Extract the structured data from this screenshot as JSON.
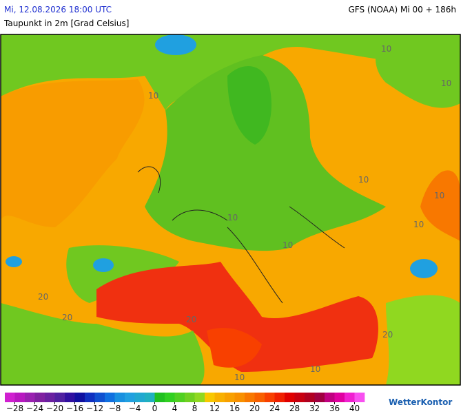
{
  "header": {
    "date": "Mi, 12.08.2026 18:00 UTC",
    "parameter": "Taupunkt in 2m [Grad Celsius]",
    "model": "GFS (NOAA) Mi 00 + 186h"
  },
  "map_labels": [
    "10",
    "10",
    "10",
    "10",
    "10",
    "10",
    "10",
    "10",
    "20",
    "20",
    "20",
    "20",
    "10",
    "10"
  ],
  "colorbar": {
    "lim": [
      -30,
      42
    ],
    "colors": [
      "#d020d0",
      "#b818c0",
      "#9a20b0",
      "#8020a0",
      "#6a20a0",
      "#5020a0",
      "#3010a0",
      "#1010a0",
      "#1030c0",
      "#1050d0",
      "#1070e0",
      "#1890e0",
      "#20a0e0",
      "#20a8d0",
      "#20b0c0",
      "#20c020",
      "#30d020",
      "#50d020",
      "#70d020",
      "#90d820",
      "#f8c800",
      "#f8b000",
      "#f8a000",
      "#f89000",
      "#f87800",
      "#f86000",
      "#f84000",
      "#f02000",
      "#e00000",
      "#c80010",
      "#b00020",
      "#a00040",
      "#c00080",
      "#e000a0",
      "#f020d0",
      "#f850f0"
    ],
    "ticks": [
      {
        "value": -28,
        "label": "−28"
      },
      {
        "value": -24,
        "label": "−24"
      },
      {
        "value": -20,
        "label": "−20"
      },
      {
        "value": -16,
        "label": "−16"
      },
      {
        "value": -12,
        "label": "−12"
      },
      {
        "value": -8,
        "label": "−8"
      },
      {
        "value": -4,
        "label": "−4"
      },
      0,
      4,
      8,
      12,
      16,
      20,
      24,
      28,
      32,
      36,
      40
    ]
  },
  "logo": "WetterKontor"
}
